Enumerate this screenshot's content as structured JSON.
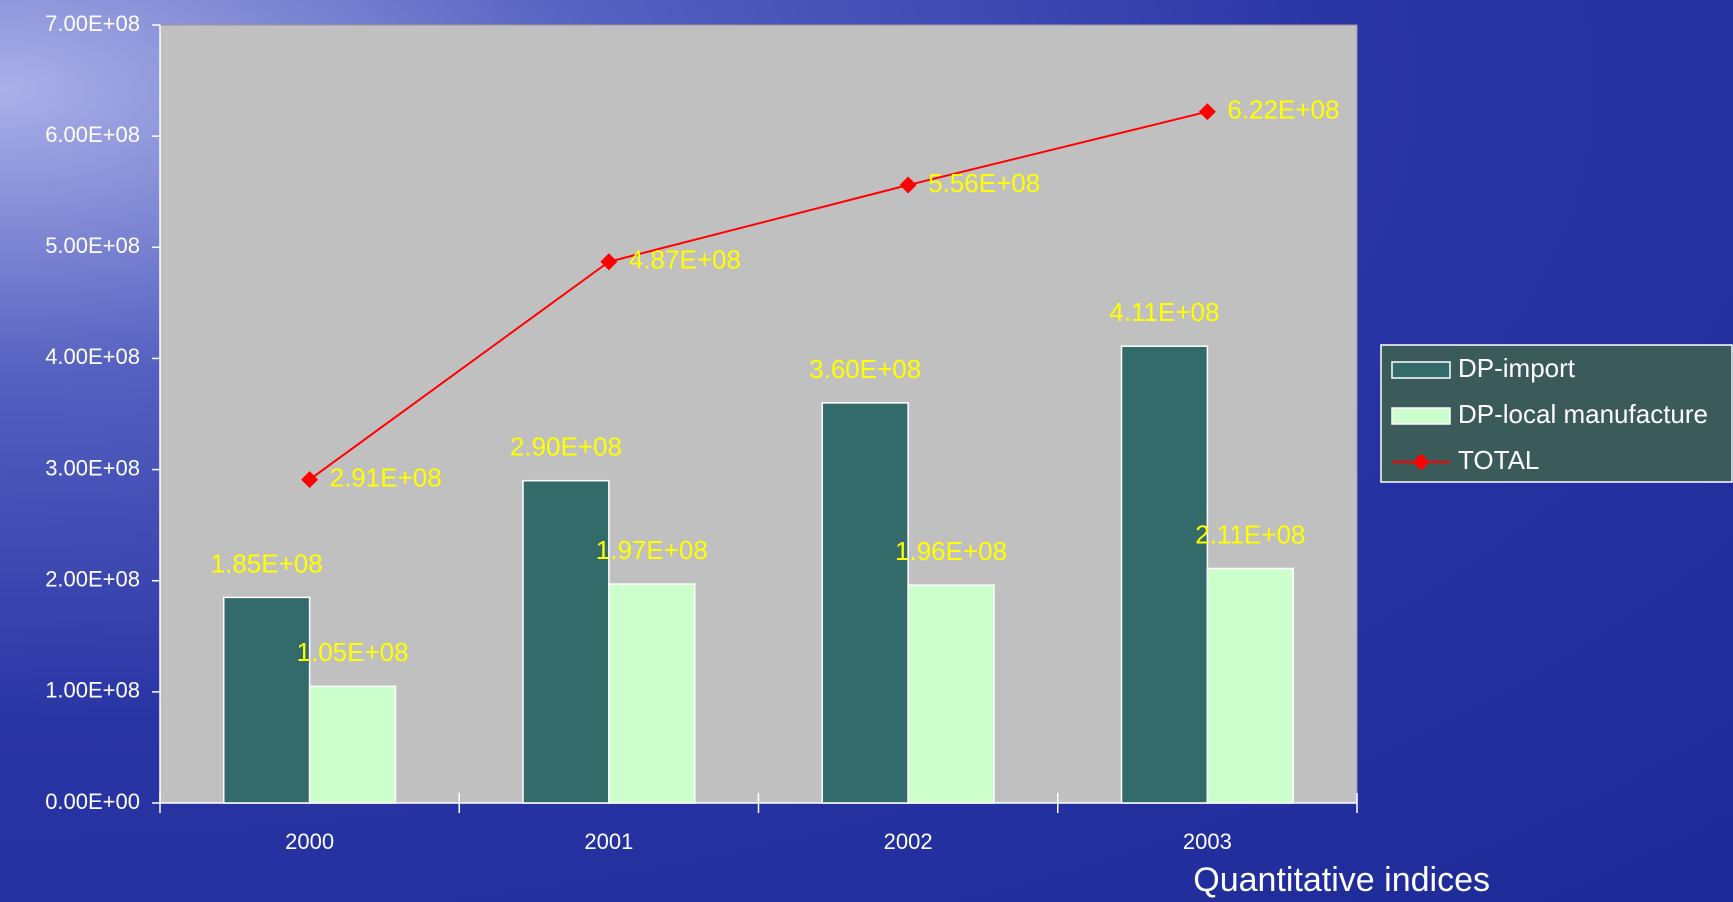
{
  "chart_data": {
    "type": "bar",
    "categories": [
      "2000",
      "2001",
      "2002",
      "2003"
    ],
    "series": [
      {
        "name": "DP-import",
        "color": "#336b6b",
        "values": [
          185000000,
          290000000,
          360000000,
          411000000
        ],
        "value_labels": [
          "1.85E+08",
          "2.90E+08",
          "3.60E+08",
          "4.11E+08"
        ]
      },
      {
        "name": "DP-local manufacture",
        "color": "#ccffcc",
        "values": [
          105000000,
          197000000,
          196000000,
          211000000
        ],
        "value_labels": [
          "1.05E+08",
          "1.97E+08",
          "1.96E+08",
          "2.11E+08"
        ]
      },
      {
        "name": "TOTAL",
        "type": "line",
        "color": "#ff0000",
        "values": [
          291000000,
          487000000,
          556000000,
          622000000
        ],
        "value_labels": [
          "2.91E+08",
          "4.87E+08",
          "5.56E+08",
          "6.22E+08"
        ]
      }
    ],
    "ylim": [
      0,
      700000000
    ],
    "yticks": [
      {
        "value": 0,
        "label": "0.00E+00"
      },
      {
        "value": 100000000,
        "label": "1.00E+08"
      },
      {
        "value": 200000000,
        "label": "2.00E+08"
      },
      {
        "value": 300000000,
        "label": "3.00E+08"
      },
      {
        "value": 400000000,
        "label": "4.00E+08"
      },
      {
        "value": 500000000,
        "label": "5.00E+08"
      },
      {
        "value": 600000000,
        "label": "6.00E+08"
      },
      {
        "value": 700000000,
        "label": "7.00E+08"
      }
    ],
    "legend": "right",
    "caption": "Quantitative indices"
  }
}
